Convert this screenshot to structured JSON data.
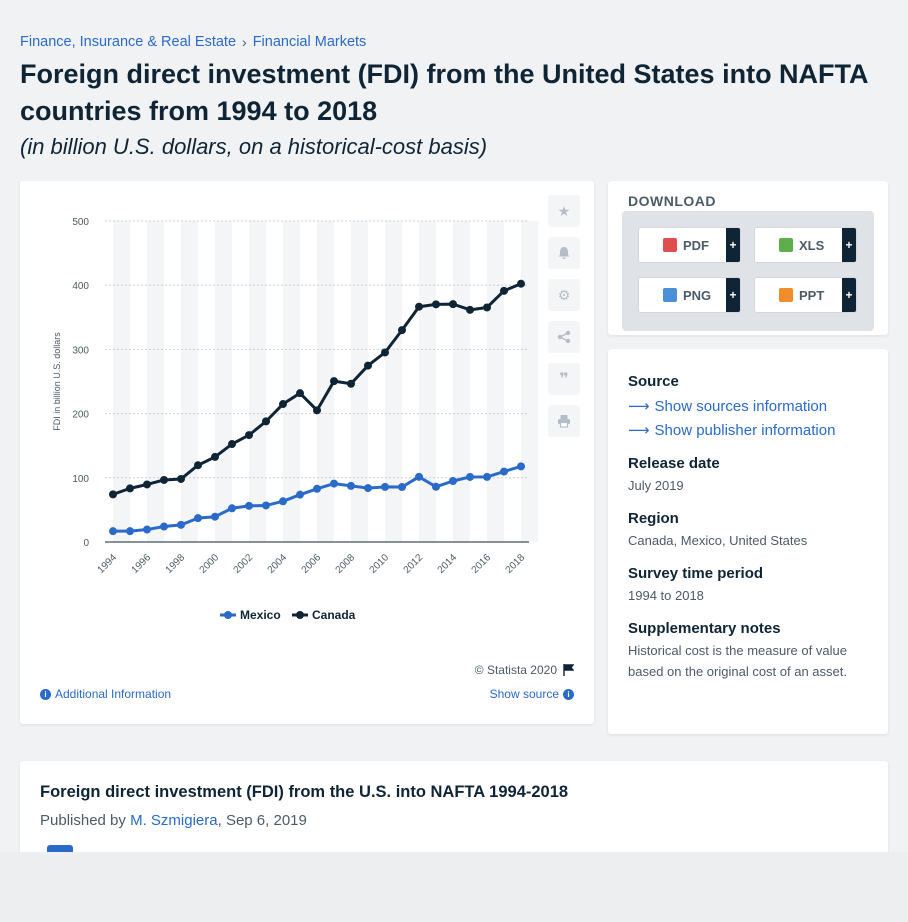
{
  "breadcrumb": {
    "item1": "Finance, Insurance & Real Estate",
    "sep": "›",
    "item2": "Financial Markets"
  },
  "title": "Foreign direct investment (FDI) from the United States into NAFTA countries from 1994 to 2018",
  "subtitle": "(in billion U.S. dollars, on a historical-cost basis)",
  "chart_toolbar": {
    "icons": [
      "star-icon",
      "bell-icon",
      "gear-icon",
      "share-icon",
      "quote-icon",
      "print-icon"
    ]
  },
  "chart_footer": {
    "copyright": "© Statista 2020",
    "additional_info": "Additional Information",
    "show_source": "Show source"
  },
  "chart_data": {
    "type": "line",
    "x": [
      1994,
      1995,
      1996,
      1997,
      1998,
      1999,
      2000,
      2001,
      2002,
      2003,
      2004,
      2005,
      2006,
      2007,
      2008,
      2009,
      2010,
      2011,
      2012,
      2013,
      2014,
      2015,
      2016,
      2017,
      2018
    ],
    "x_tick_labels": [
      "1994",
      "1996",
      "1998",
      "2000",
      "2002",
      "2004",
      "2006",
      "2008",
      "2010",
      "2012",
      "2014",
      "2016",
      "2018"
    ],
    "series": [
      {
        "name": "Mexico",
        "color": "#2a6ac8",
        "values": [
          16.9,
          16.9,
          19.4,
          24.1,
          26.7,
          37.2,
          39.4,
          52.5,
          56.3,
          56.9,
          63.4,
          73.7,
          82.9,
          91.0,
          87.4,
          84.0,
          85.8,
          85.6,
          101.5,
          86.0,
          95.0,
          101.3,
          101.4,
          109.7,
          117.8
        ]
      },
      {
        "name": "Canada",
        "color": "#0f2535",
        "values": [
          74.2,
          83.5,
          89.6,
          96.6,
          98.2,
          119.6,
          132.5,
          152.6,
          166.5,
          187.9,
          214.9,
          231.8,
          205.1,
          250.6,
          246.5,
          274.8,
          295.2,
          330.0,
          366.5,
          370.2,
          370.5,
          361.6,
          365.3,
          391.2,
          402.3
        ]
      }
    ],
    "ylabel": "FDI in billion U.S. dollars",
    "xlabel": "",
    "ylim": [
      0,
      500
    ],
    "yticks": [
      "0",
      "100",
      "200",
      "300",
      "400",
      "500"
    ],
    "grid": true,
    "legend_position": "bottom"
  },
  "download": {
    "title": "DOWNLOAD",
    "buttons": [
      {
        "label": "PDF",
        "icon": "pdf-icon",
        "color": "#e04d4d"
      },
      {
        "label": "XLS",
        "icon": "xls-icon",
        "color": "#5fae4c"
      },
      {
        "label": "PNG",
        "icon": "png-icon",
        "color": "#4a8fd8"
      },
      {
        "label": "PPT",
        "icon": "ppt-icon",
        "color": "#f08c2a"
      }
    ],
    "plus": "+"
  },
  "info": {
    "source_label": "Source",
    "show_sources": "Show sources information",
    "show_publisher": "Show publisher information",
    "release_label": "Release date",
    "release_value": "July 2019",
    "region_label": "Region",
    "region_value": "Canada, Mexico, United States",
    "period_label": "Survey time period",
    "period_value": "1994 to 2018",
    "notes_label": "Supplementary notes",
    "notes_value": "Historical cost is the measure of value based on the original cost of an asset."
  },
  "article": {
    "title": "Foreign direct investment (FDI) from the U.S. into NAFTA 1994-2018",
    "published_prefix": "Published by",
    "author": "M. Szmigiera",
    "date": ", Sep 6, 2019"
  },
  "colors": {
    "accent": "#2a6ac8",
    "dark": "#0f2535"
  }
}
